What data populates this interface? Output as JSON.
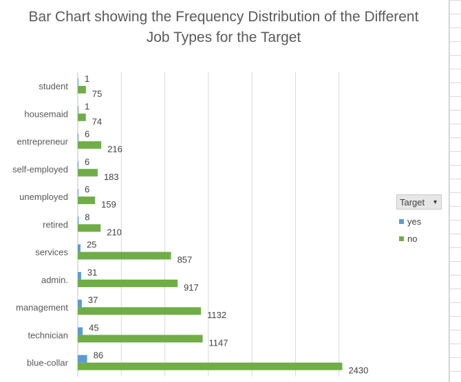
{
  "chart_data": {
    "type": "bar",
    "orientation": "horizontal",
    "title": "Bar Chart showing the Frequency Distribution of the Different Job Types for the Target",
    "categories": [
      "student",
      "housemaid",
      "entrepreneur",
      "self-employed",
      "unemployed",
      "retired",
      "services",
      "admin.",
      "management",
      "technician",
      "blue-collar"
    ],
    "series": [
      {
        "name": "yes",
        "color": "#5b9bd5",
        "values": [
          1,
          1,
          6,
          6,
          6,
          8,
          25,
          31,
          37,
          45,
          86
        ]
      },
      {
        "name": "no",
        "color": "#70ad47",
        "values": [
          75,
          74,
          216,
          183,
          159,
          210,
          857,
          917,
          1132,
          1147,
          2430
        ]
      }
    ],
    "xlim": [
      0,
      2800
    ],
    "grid": true,
    "legend": {
      "title": "Target",
      "position": "right"
    }
  }
}
